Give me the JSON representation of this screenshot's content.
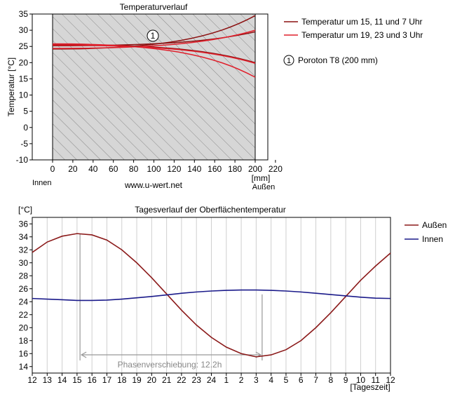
{
  "chart_data": [
    {
      "type": "line",
      "title": "Temperaturverlauf",
      "xlabel": "[mm]",
      "ylabel": "Temperatur [°C]",
      "x_ticks": [
        "0",
        "20",
        "40",
        "60",
        "80",
        "100",
        "120",
        "140",
        "160",
        "180",
        "200",
        "220"
      ],
      "y_ticks": [
        "35",
        "30",
        "25",
        "20",
        "15",
        "10",
        "5",
        "0",
        "-5",
        "-10"
      ],
      "xlim": [
        0,
        220
      ],
      "ylim": [
        -10,
        35
      ],
      "x": [
        0,
        200
      ],
      "layer": {
        "marker": "1",
        "name": "Poroton T8 (200 mm)",
        "x_range": [
          0,
          200
        ]
      },
      "left_label": "Innen",
      "right_label": "Außen",
      "watermark": "www.u-wert.net",
      "series": [
        {
          "name": "Temperatur um 15, 11 und 7 Uhr",
          "color": "#8b1010",
          "curves": [
            [
              24.2,
              34.5
            ],
            [
              25.2,
              29.5
            ],
            [
              25.6,
              20.0
            ]
          ]
        },
        {
          "name": "Temperatur um 19, 23 und 3 Uhr",
          "color": "#e0202c",
          "curves": [
            [
              24.4,
              30.0
            ],
            [
              25.4,
              19.8
            ],
            [
              25.8,
              15.5
            ]
          ]
        }
      ]
    },
    {
      "type": "line",
      "title": "Tagesverlauf der Oberflächentemperatur",
      "xlabel": "[Tageszeit]",
      "ylabel": "[°C]",
      "categories": [
        "12",
        "13",
        "14",
        "15",
        "16",
        "17",
        "18",
        "19",
        "20",
        "21",
        "22",
        "23",
        "24",
        "1",
        "2",
        "3",
        "4",
        "5",
        "6",
        "7",
        "8",
        "9",
        "10",
        "11",
        "12"
      ],
      "y_ticks": [
        "36",
        "34",
        "32",
        "30",
        "28",
        "26",
        "24",
        "22",
        "20",
        "18",
        "16",
        "14"
      ],
      "ylim": [
        13,
        37
      ],
      "series": [
        {
          "name": "Außen",
          "color": "#8b1a1a",
          "values": [
            31.6,
            33.2,
            34.1,
            34.5,
            34.3,
            33.5,
            32.0,
            30.0,
            27.7,
            25.2,
            22.7,
            20.4,
            18.5,
            17.0,
            16.0,
            15.5,
            15.8,
            16.6,
            18.0,
            20.0,
            22.3,
            24.8,
            27.3,
            29.5,
            31.5
          ]
        },
        {
          "name": "Innen",
          "color": "#1a1a8a",
          "values": [
            24.5,
            24.4,
            24.3,
            24.2,
            24.2,
            24.25,
            24.4,
            24.6,
            24.8,
            25.05,
            25.3,
            25.5,
            25.65,
            25.75,
            25.8,
            25.8,
            25.75,
            25.65,
            25.5,
            25.3,
            25.1,
            24.9,
            24.7,
            24.55,
            24.5
          ]
        }
      ],
      "phase_shift": {
        "label": "Phasenverschiebung: 12.2h",
        "from_hour": 15.2,
        "to_hour": 3.4
      }
    }
  ]
}
